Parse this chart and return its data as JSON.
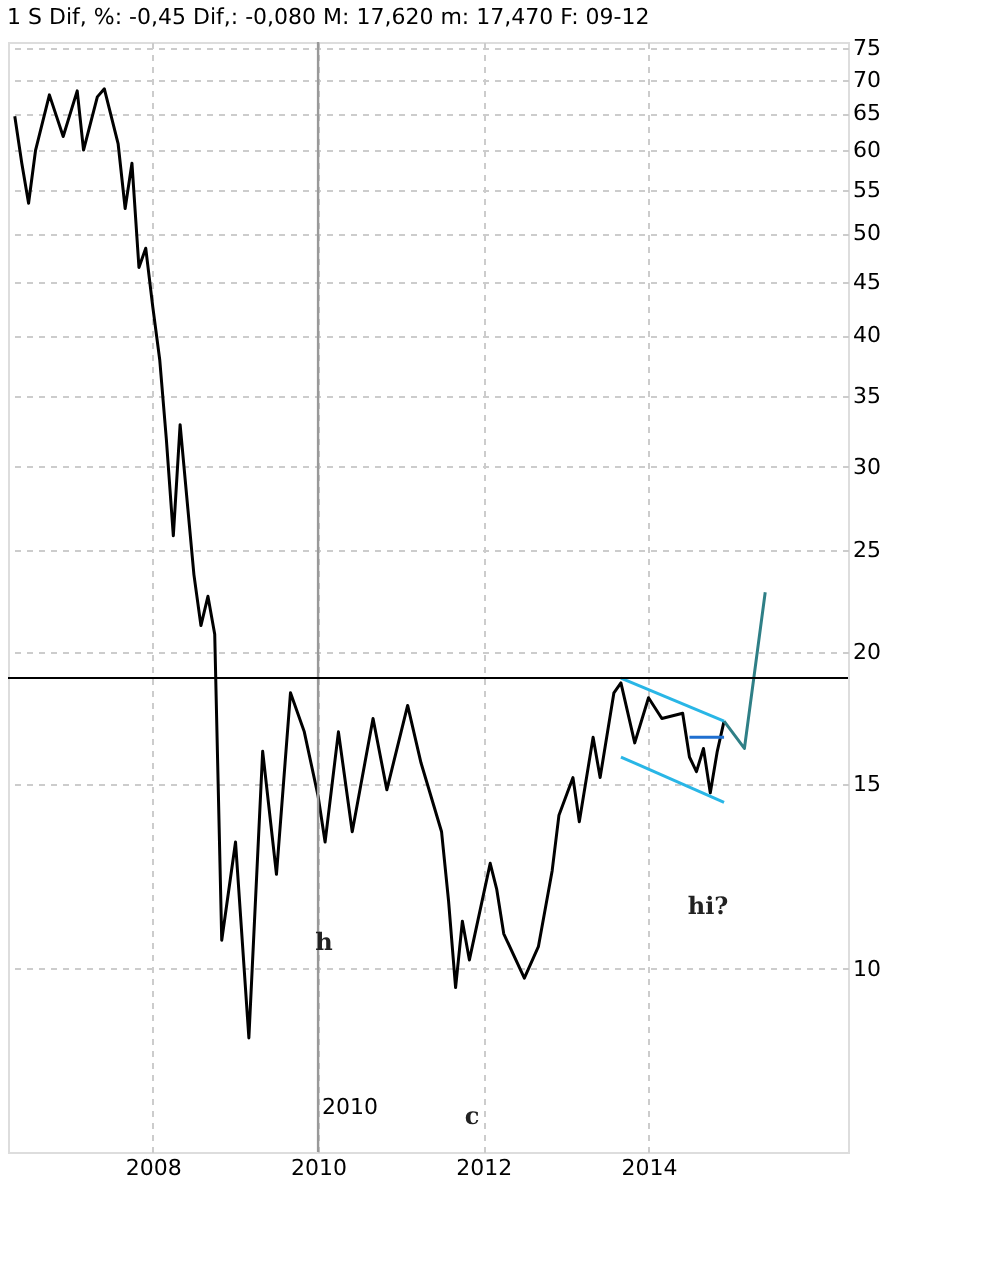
{
  "chart_data": {
    "type": "line",
    "title": "1 S Dif, %: -0,45 Dif,: -0,080 M: 17,620 m: 17,470 F: 09-12",
    "x": [
      "2006-05",
      "2006-06",
      "2006-07",
      "2006-08",
      "2006-10",
      "2006-12",
      "2007-02",
      "2007-03",
      "2007-05",
      "2007-06",
      "2007-08",
      "2007-09",
      "2007-10",
      "2007-11",
      "2007-12",
      "2008-01",
      "2008-02",
      "2008-03",
      "2008-04",
      "2008-05",
      "2008-07",
      "2008-08",
      "2008-09",
      "2008-10",
      "2008-11",
      "2009-01",
      "2009-03",
      "2009-05",
      "2009-07",
      "2009-09",
      "2009-11",
      "2010-01",
      "2010-02",
      "2010-04",
      "2010-06",
      "2010-09",
      "2010-11",
      "2011-02",
      "2011-04",
      "2011-07",
      "2011-08",
      "2011-09",
      "2011-10",
      "2011-11",
      "2012-02",
      "2012-03",
      "2012-04",
      "2012-07",
      "2012-09",
      "2012-11",
      "2012-12",
      "2013-02",
      "2013-03",
      "2013-05",
      "2013-06",
      "2013-08",
      "2013-09",
      "2013-11",
      "2014-01",
      "2014-03",
      "2014-06",
      "2014-07",
      "2014-08",
      "2014-09",
      "2014-10",
      "2014-11",
      "2014-12"
    ],
    "series": [
      {
        "color": "#000000",
        "values": [
          64.6,
          58.3,
          53.4,
          60,
          67.7,
          61.8,
          68.3,
          60,
          67.4,
          68.6,
          60.8,
          52.8,
          58.3,
          46.4,
          48.4,
          42.6,
          37.9,
          31.9,
          25.8,
          32.9,
          23.7,
          21.2,
          22.6,
          20.8,
          10.65,
          13.2,
          8.6,
          16.1,
          12.3,
          18.3,
          16.8,
          14.6,
          13.2,
          16.8,
          13.5,
          17.3,
          14.8,
          17.8,
          15.7,
          13.5,
          11.6,
          9.6,
          11.1,
          10.2,
          12.6,
          11.9,
          10.8,
          9.8,
          10.5,
          12.4,
          14.0,
          15.2,
          13.8,
          16.6,
          15.2,
          18.3,
          18.7,
          16.4,
          18.1,
          17.3,
          17.5,
          15.9,
          15.4,
          16.2,
          14.7,
          16.1,
          17.2
        ]
      },
      {
        "type": "line",
        "color": "#29b6e6",
        "x": [
          "2013-09",
          "2014-12"
        ],
        "values": [
          18.9,
          17.2
        ]
      },
      {
        "type": "line",
        "color": "#29b6e6",
        "x": [
          "2013-09",
          "2014-12"
        ],
        "values": [
          15.9,
          14.4
        ]
      },
      {
        "type": "line",
        "color": "#1f6fd0",
        "x": [
          "2014-07",
          "2014-12"
        ],
        "values": [
          16.6,
          16.6
        ]
      },
      {
        "type": "line",
        "color": "#2f7f86",
        "x": [
          "2014-12",
          "2015-03",
          "2015-06"
        ],
        "values": [
          17.2,
          16.2,
          22.8
        ]
      }
    ],
    "xlim": [
      "2006-04",
      "2016-06"
    ],
    "xticks": [
      "2008",
      "2010",
      "2012",
      "2014"
    ],
    "ylim": [
      6.7,
      76
    ],
    "yticks": [
      10,
      15,
      20,
      25,
      30,
      35,
      40,
      45,
      50,
      55,
      60,
      65,
      70,
      75
    ],
    "log": true,
    "grid": true,
    "legend": false,
    "marker": "none",
    "line_style": "solid",
    "ref_lines": [
      {
        "axis": "x",
        "value": "2010",
        "label": "2010",
        "color": "#999999"
      },
      {
        "axis": "y",
        "value": 18.9,
        "color": "#000000"
      }
    ],
    "annotations": [
      "h",
      "c",
      "hi?"
    ]
  }
}
